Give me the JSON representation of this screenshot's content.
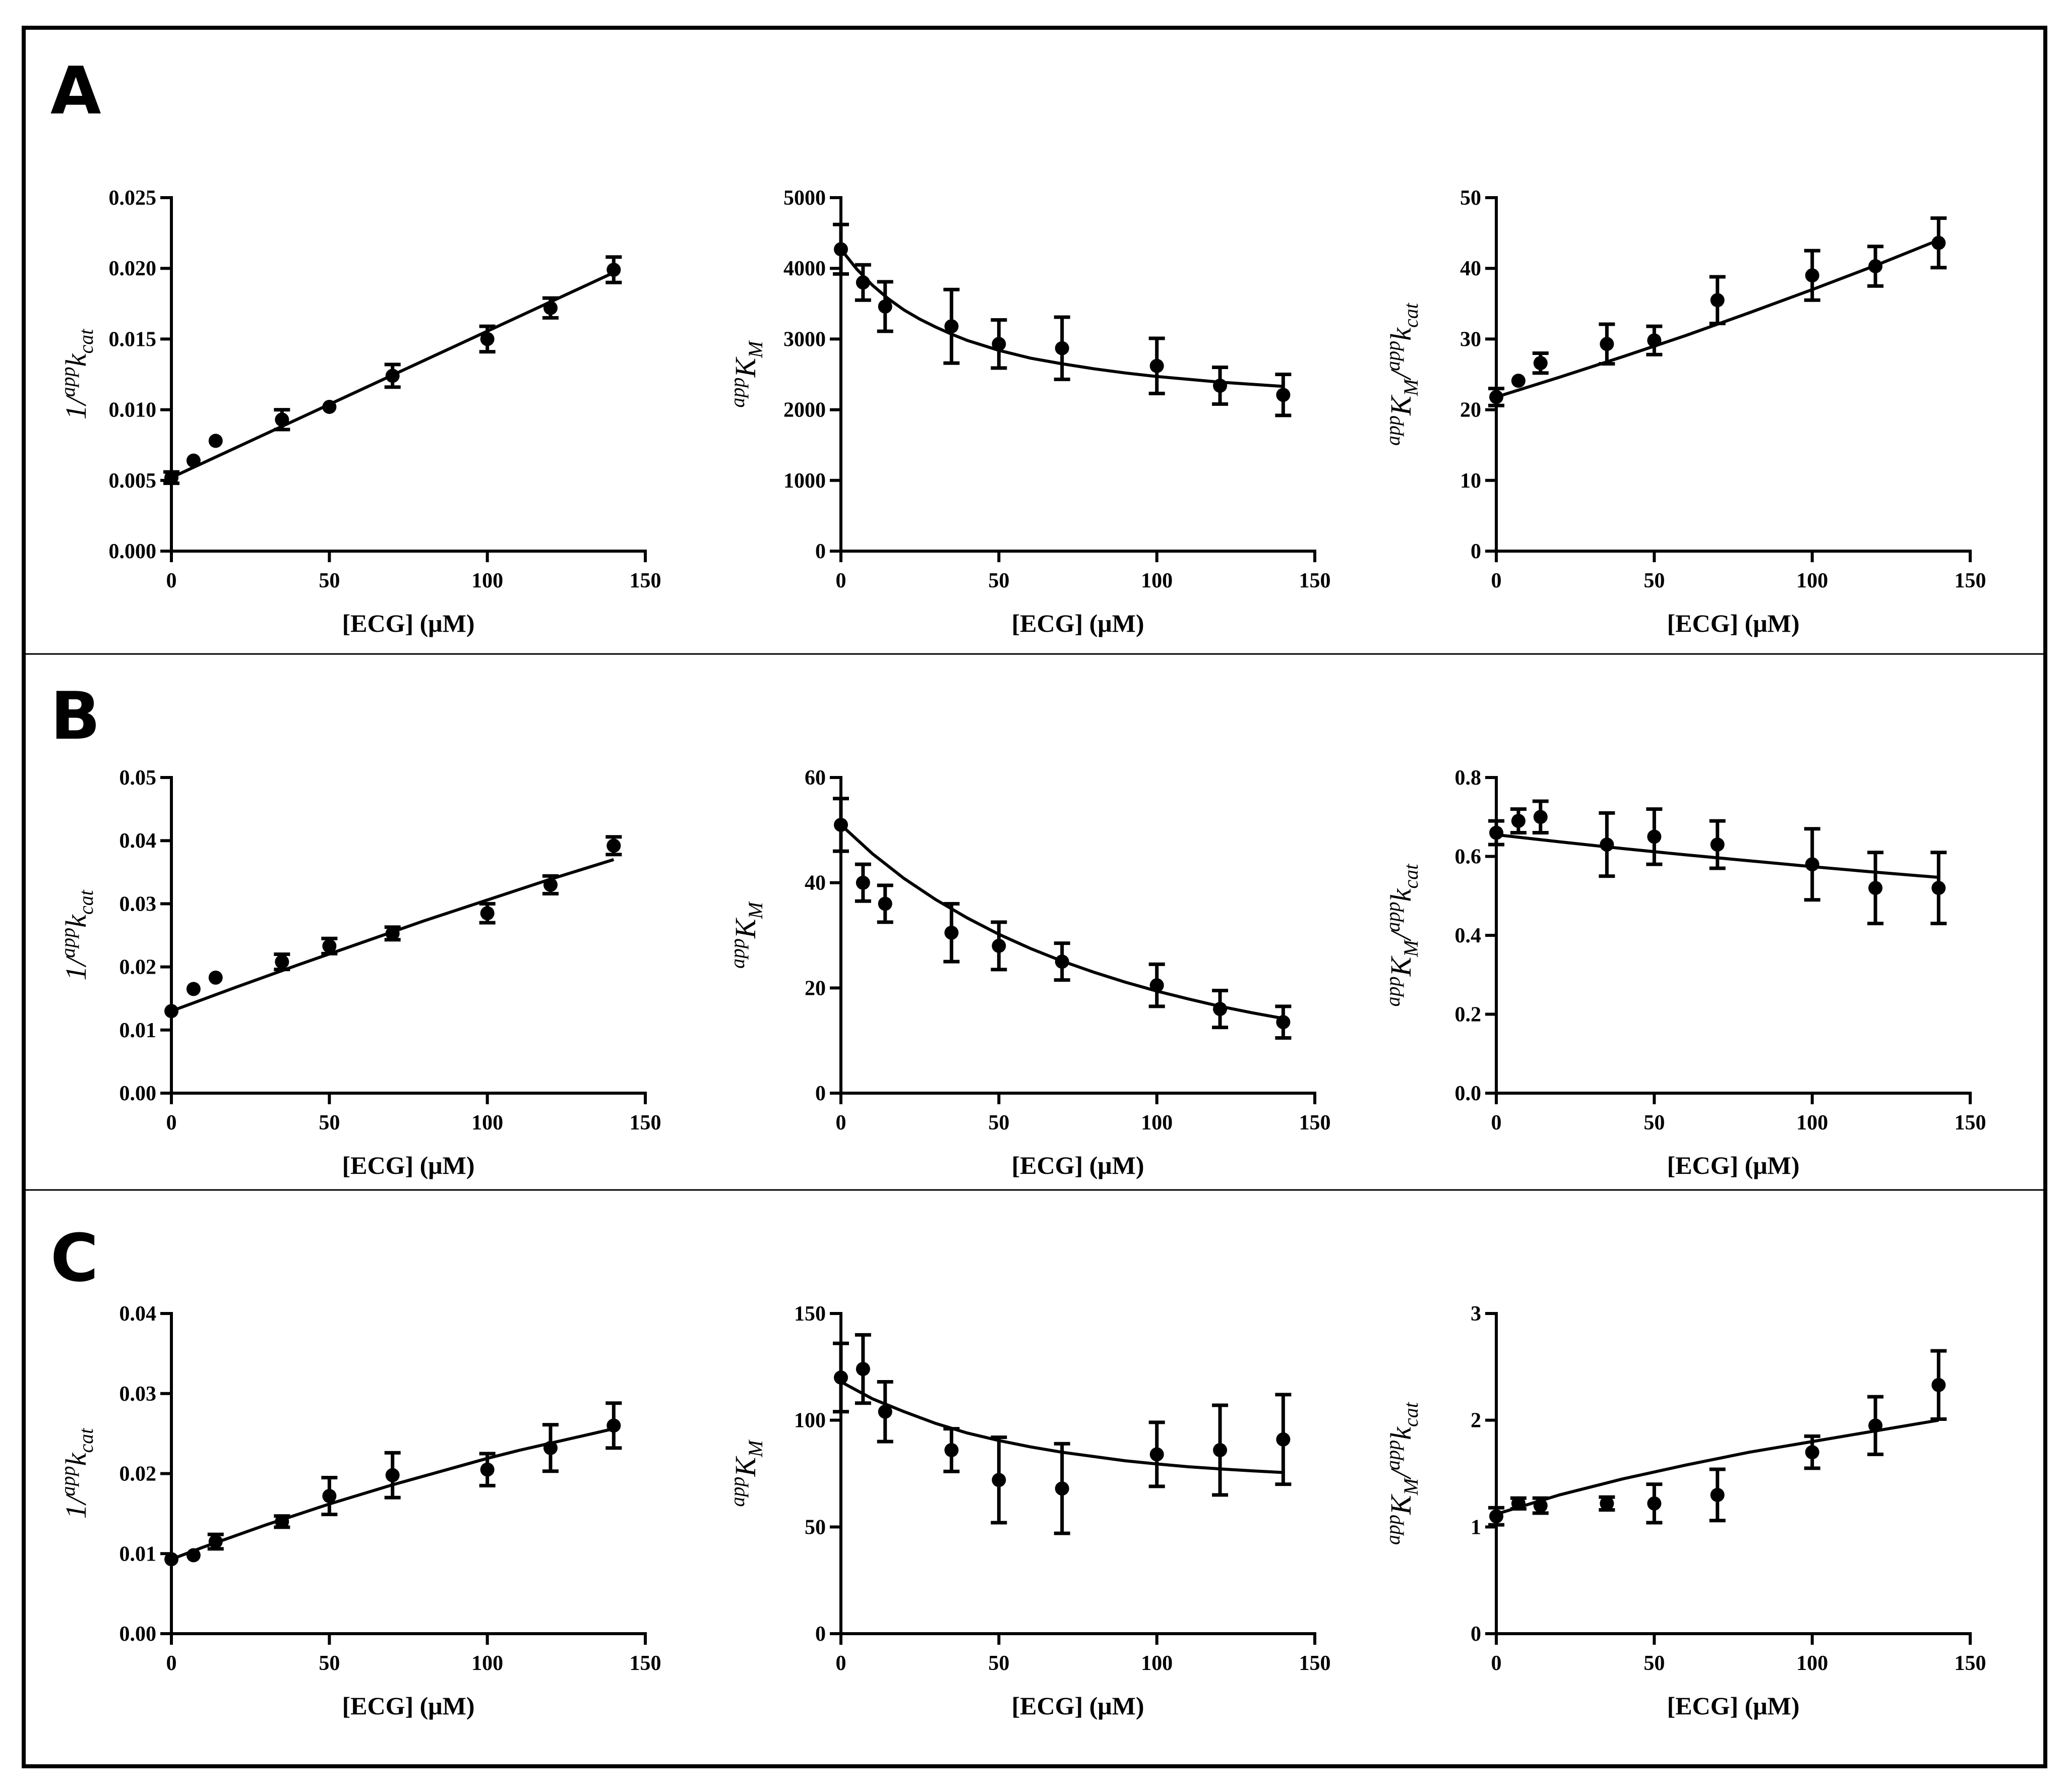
{
  "panels": [
    {
      "letter": "A"
    },
    {
      "letter": "B"
    },
    {
      "letter": "C"
    }
  ],
  "chart_data": [
    {
      "type": "scatter",
      "row": "A",
      "col": 0,
      "title": "",
      "xlabel": "[ECG] (μM)",
      "ylabel": {
        "pre": "1/",
        "sup": "app",
        "main": "k",
        "sub": "cat",
        "sup2": "",
        "main2": "",
        "sub2": ""
      },
      "xlim": [
        0,
        150
      ],
      "ylim": [
        0,
        0.025
      ],
      "xticks": [
        0,
        50,
        100,
        150
      ],
      "yticks": [
        0,
        0.005,
        0.01,
        0.015,
        0.02,
        0.025
      ],
      "ytick_labels": [
        "0.000",
        "0.005",
        "0.010",
        "0.015",
        "0.020",
        "0.025"
      ],
      "x": [
        0,
        7,
        14,
        35,
        50,
        70,
        100,
        120,
        140
      ],
      "y": [
        0.0052,
        0.0064,
        0.0078,
        0.0093,
        0.0102,
        0.0124,
        0.015,
        0.0172,
        0.0199
      ],
      "err": [
        0.0004,
        0,
        0,
        0.0007,
        0,
        0.0008,
        0.0009,
        0.0007,
        0.0009
      ],
      "fit": {
        "x": [
          0,
          140
        ],
        "y": [
          0.0052,
          0.0197
        ]
      }
    },
    {
      "type": "scatter",
      "row": "A",
      "col": 1,
      "title": "",
      "xlabel": "[ECG] (μM)",
      "ylabel": {
        "pre": "",
        "sup": "app",
        "main": "K",
        "sub": "M",
        "sup2": "",
        "main2": "",
        "sub2": ""
      },
      "xlim": [
        0,
        150
      ],
      "ylim": [
        0,
        5000
      ],
      "xticks": [
        0,
        50,
        100,
        150
      ],
      "yticks": [
        0,
        1000,
        2000,
        3000,
        4000,
        5000
      ],
      "ytick_labels": [
        "0",
        "1000",
        "2000",
        "3000",
        "4000",
        "5000"
      ],
      "x": [
        0,
        7,
        14,
        35,
        50,
        70,
        100,
        120,
        140
      ],
      "y": [
        4270,
        3800,
        3460,
        3180,
        2930,
        2870,
        2620,
        2340,
        2210
      ],
      "err": [
        350,
        250,
        350,
        520,
        340,
        440,
        390,
        260,
        290
      ],
      "fit": {
        "x": [
          0,
          5,
          10,
          15,
          20,
          25,
          30,
          35,
          40,
          50,
          60,
          70,
          80,
          90,
          100,
          110,
          120,
          130,
          140
        ],
        "y": [
          4270,
          3990,
          3760,
          3570,
          3410,
          3280,
          3170,
          3070,
          2980,
          2840,
          2730,
          2650,
          2580,
          2520,
          2470,
          2430,
          2390,
          2360,
          2330
        ]
      }
    },
    {
      "type": "scatter",
      "row": "A",
      "col": 2,
      "title": "",
      "xlabel": "[ECG] (μM)",
      "ylabel": {
        "pre": "",
        "sup": "app",
        "main": "K",
        "sub": "M",
        "sup2": "app",
        "main2": "k",
        "sub2": "cat"
      },
      "xlim": [
        0,
        150
      ],
      "ylim": [
        0,
        50
      ],
      "xticks": [
        0,
        50,
        100,
        150
      ],
      "yticks": [
        0,
        10,
        20,
        30,
        40,
        50
      ],
      "ytick_labels": [
        "0",
        "10",
        "20",
        "30",
        "40",
        "50"
      ],
      "x": [
        0,
        7,
        14,
        35,
        50,
        70,
        100,
        120,
        140
      ],
      "y": [
        21.8,
        24.1,
        26.6,
        29.3,
        29.8,
        35.5,
        39,
        40.3,
        43.6
      ],
      "err": [
        1.2,
        0,
        1.4,
        2.8,
        2,
        3.3,
        3.5,
        2.8,
        3.5
      ],
      "fit": {
        "x": [
          0,
          20,
          40,
          60,
          80,
          100,
          120,
          140
        ],
        "y": [
          21.8,
          24.6,
          27.5,
          30.5,
          33.7,
          37,
          40.4,
          44
        ]
      }
    },
    {
      "type": "scatter",
      "row": "B",
      "col": 0,
      "title": "",
      "xlabel": "[ECG] (μM)",
      "ylabel": {
        "pre": "1/",
        "sup": "app",
        "main": "k",
        "sub": "cat",
        "sup2": "",
        "main2": "",
        "sub2": ""
      },
      "xlim": [
        0,
        150
      ],
      "ylim": [
        0,
        0.05
      ],
      "xticks": [
        0,
        50,
        100,
        150
      ],
      "yticks": [
        0,
        0.01,
        0.02,
        0.03,
        0.04,
        0.05
      ],
      "ytick_labels": [
        "0.00",
        "0.01",
        "0.02",
        "0.03",
        "0.04",
        "0.05"
      ],
      "x": [
        0,
        7,
        14,
        35,
        50,
        70,
        100,
        120,
        140
      ],
      "y": [
        0.013,
        0.0165,
        0.0183,
        0.0208,
        0.0233,
        0.0253,
        0.0285,
        0.033,
        0.0392
      ],
      "err": [
        0,
        0,
        0,
        0.0012,
        0.0012,
        0.001,
        0.0015,
        0.0014,
        0.0014
      ],
      "fit": {
        "x": [
          0,
          20,
          40,
          60,
          80,
          100,
          120,
          140
        ],
        "y": [
          0.013,
          0.0167,
          0.0203,
          0.0238,
          0.0273,
          0.0306,
          0.0339,
          0.037
        ]
      }
    },
    {
      "type": "scatter",
      "row": "B",
      "col": 1,
      "title": "",
      "xlabel": "[ECG] (μM)",
      "ylabel": {
        "pre": "",
        "sup": "app",
        "main": "K",
        "sub": "M",
        "sup2": "",
        "main2": "",
        "sub2": ""
      },
      "xlim": [
        0,
        150
      ],
      "ylim": [
        0,
        60
      ],
      "xticks": [
        0,
        50,
        100,
        150
      ],
      "yticks": [
        0,
        20,
        40,
        60
      ],
      "ytick_labels": [
        "0",
        "20",
        "40",
        "60"
      ],
      "x": [
        0,
        7,
        14,
        35,
        50,
        70,
        100,
        120,
        140
      ],
      "y": [
        51,
        40,
        36,
        30.5,
        28,
        25,
        20.5,
        16,
        13.5
      ],
      "err": [
        5,
        3.5,
        3.5,
        5.5,
        4.5,
        3.5,
        4,
        3.5,
        3
      ],
      "fit": {
        "x": [
          0,
          10,
          20,
          30,
          40,
          50,
          60,
          70,
          80,
          90,
          100,
          110,
          120,
          130,
          140
        ],
        "y": [
          51,
          45.5,
          40.8,
          36.8,
          33.3,
          30.2,
          27.5,
          25.1,
          23,
          21.1,
          19.4,
          17.9,
          16.5,
          15.3,
          14.2
        ]
      }
    },
    {
      "type": "scatter",
      "row": "B",
      "col": 2,
      "title": "",
      "xlabel": "[ECG] (μM)",
      "ylabel": {
        "pre": "",
        "sup": "app",
        "main": "K",
        "sub": "M",
        "sup2": "app",
        "main2": "k",
        "sub2": "cat"
      },
      "xlim": [
        0,
        150
      ],
      "ylim": [
        0,
        0.8
      ],
      "xticks": [
        0,
        50,
        100,
        150
      ],
      "yticks": [
        0,
        0.2,
        0.4,
        0.6,
        0.8
      ],
      "ytick_labels": [
        "0.0",
        "0.2",
        "0.4",
        "0.6",
        "0.8"
      ],
      "x": [
        0,
        7,
        14,
        35,
        50,
        70,
        100,
        120,
        140
      ],
      "y": [
        0.66,
        0.69,
        0.7,
        0.63,
        0.65,
        0.63,
        0.58,
        0.52,
        0.52
      ],
      "err": [
        0.03,
        0.03,
        0.04,
        0.08,
        0.07,
        0.06,
        0.09,
        0.09,
        0.09
      ],
      "fit": {
        "x": [
          0,
          20,
          40,
          60,
          80,
          100,
          120,
          140
        ],
        "y": [
          0.655,
          0.637,
          0.62,
          0.604,
          0.589,
          0.574,
          0.56,
          0.547
        ]
      }
    },
    {
      "type": "scatter",
      "row": "C",
      "col": 0,
      "title": "",
      "xlabel": "[ECG] (μM)",
      "ylabel": {
        "pre": "1/",
        "sup": "app",
        "main": "k",
        "sub": "cat",
        "sup2": "",
        "main2": "",
        "sub2": ""
      },
      "xlim": [
        0,
        150
      ],
      "ylim": [
        0,
        0.04
      ],
      "xticks": [
        0,
        50,
        100,
        150
      ],
      "yticks": [
        0,
        0.01,
        0.02,
        0.03,
        0.04
      ],
      "ytick_labels": [
        "0.00",
        "0.01",
        "0.02",
        "0.03",
        "0.04"
      ],
      "x": [
        0,
        7,
        14,
        35,
        50,
        70,
        100,
        120,
        140
      ],
      "y": [
        0.0093,
        0.0098,
        0.0115,
        0.014,
        0.0172,
        0.0198,
        0.0205,
        0.0232,
        0.026
      ],
      "err": [
        0,
        0,
        0.0009,
        0.0007,
        0.0023,
        0.0028,
        0.002,
        0.0029,
        0.0028
      ],
      "fit": {
        "x": [
          0,
          10,
          20,
          30,
          40,
          50,
          60,
          70,
          80,
          90,
          100,
          110,
          120,
          130,
          140
        ],
        "y": [
          0.0093,
          0.0108,
          0.0122,
          0.0136,
          0.0149,
          0.0162,
          0.0174,
          0.0186,
          0.0197,
          0.0208,
          0.0219,
          0.0229,
          0.0238,
          0.0247,
          0.0256
        ]
      }
    },
    {
      "type": "scatter",
      "row": "C",
      "col": 1,
      "title": "",
      "xlabel": "[ECG] (μM)",
      "ylabel": {
        "pre": "",
        "sup": "app",
        "main": "K",
        "sub": "M",
        "sup2": "",
        "main2": "",
        "sub2": ""
      },
      "xlim": [
        0,
        150
      ],
      "ylim": [
        0,
        150
      ],
      "xticks": [
        0,
        50,
        100,
        150
      ],
      "yticks": [
        0,
        50,
        100,
        150
      ],
      "ytick_labels": [
        "0",
        "50",
        "100",
        "150"
      ],
      "x": [
        0,
        7,
        14,
        35,
        50,
        70,
        100,
        120,
        140
      ],
      "y": [
        120,
        124,
        104,
        86,
        72,
        68,
        84,
        86,
        91
      ],
      "err": [
        16,
        16,
        14,
        10,
        20,
        21,
        15,
        21,
        21
      ],
      "fit": {
        "x": [
          0,
          10,
          20,
          30,
          40,
          50,
          60,
          70,
          80,
          90,
          100,
          110,
          120,
          130,
          140
        ],
        "y": [
          118,
          110,
          104,
          98.5,
          94,
          90.5,
          87.5,
          85,
          83,
          81,
          79.5,
          78.2,
          77.2,
          76.3,
          75.5
        ]
      }
    },
    {
      "type": "scatter",
      "row": "C",
      "col": 2,
      "title": "",
      "xlabel": "[ECG] (μM)",
      "ylabel": {
        "pre": "",
        "sup": "app",
        "main": "K",
        "sub": "M",
        "sup2": "app",
        "main2": "k",
        "sub2": "cat"
      },
      "xlim": [
        0,
        150
      ],
      "ylim": [
        0,
        3
      ],
      "xticks": [
        0,
        50,
        100,
        150
      ],
      "yticks": [
        0,
        1,
        2,
        3
      ],
      "ytick_labels": [
        "0",
        "1",
        "2",
        "3"
      ],
      "x": [
        0,
        7,
        14,
        35,
        50,
        70,
        100,
        120,
        140
      ],
      "y": [
        1.1,
        1.22,
        1.2,
        1.22,
        1.22,
        1.3,
        1.7,
        1.95,
        2.33
      ],
      "err": [
        0.08,
        0.05,
        0.07,
        0.06,
        0.18,
        0.24,
        0.15,
        0.27,
        0.32
      ],
      "fit": {
        "x": [
          0,
          20,
          40,
          60,
          80,
          100,
          120,
          140
        ],
        "y": [
          1.12,
          1.3,
          1.45,
          1.58,
          1.7,
          1.8,
          1.9,
          2.0
        ]
      }
    }
  ]
}
